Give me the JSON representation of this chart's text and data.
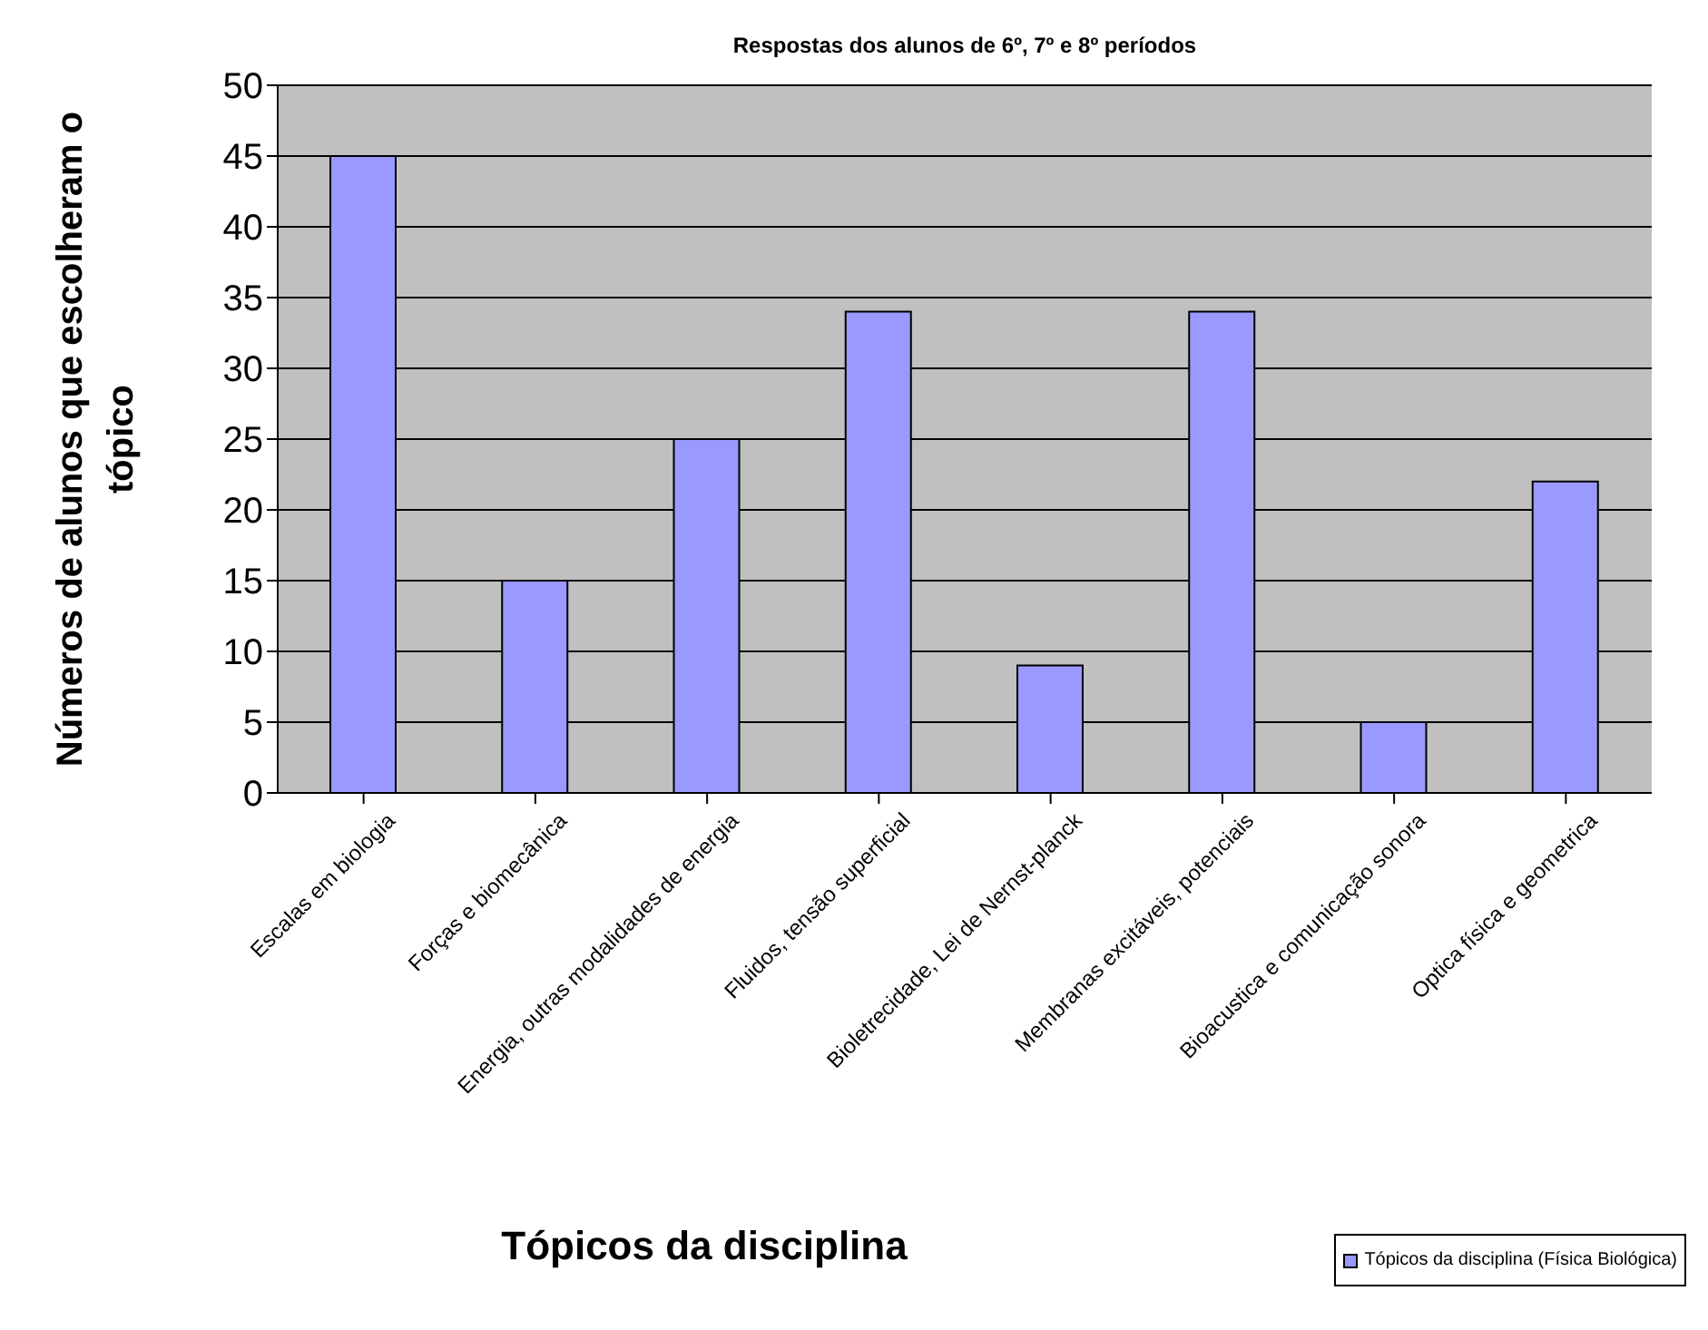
{
  "chart_data": {
    "type": "bar",
    "title": "Respostas dos alunos de 6º, 7º e 8º períodos",
    "xlabel": "Tópicos da disciplina",
    "ylabel": "Números de alunos que escolheram o tópico",
    "categories": [
      "Escalas em biologia",
      "Forças e biomecânica",
      "Energia, outras modalidades de energia",
      "Fluidos, tensão superficial",
      "Bioletrecidade, Lei de Nernst-planck",
      "Membranas excitáveis, potenciais",
      "Bioacustica e comunicação sonora",
      "Optica física e geometrica"
    ],
    "series": [
      {
        "name": "Tópicos da disciplina (Física Biológica)",
        "color": "#9999ff",
        "values": [
          45,
          15,
          25,
          34,
          9,
          34,
          5,
          22
        ]
      }
    ],
    "ylim": [
      0,
      50
    ],
    "yticks": [
      0,
      5,
      10,
      15,
      20,
      25,
      30,
      35,
      40,
      45,
      50
    ],
    "grid": "y",
    "legend": "bottom right"
  }
}
